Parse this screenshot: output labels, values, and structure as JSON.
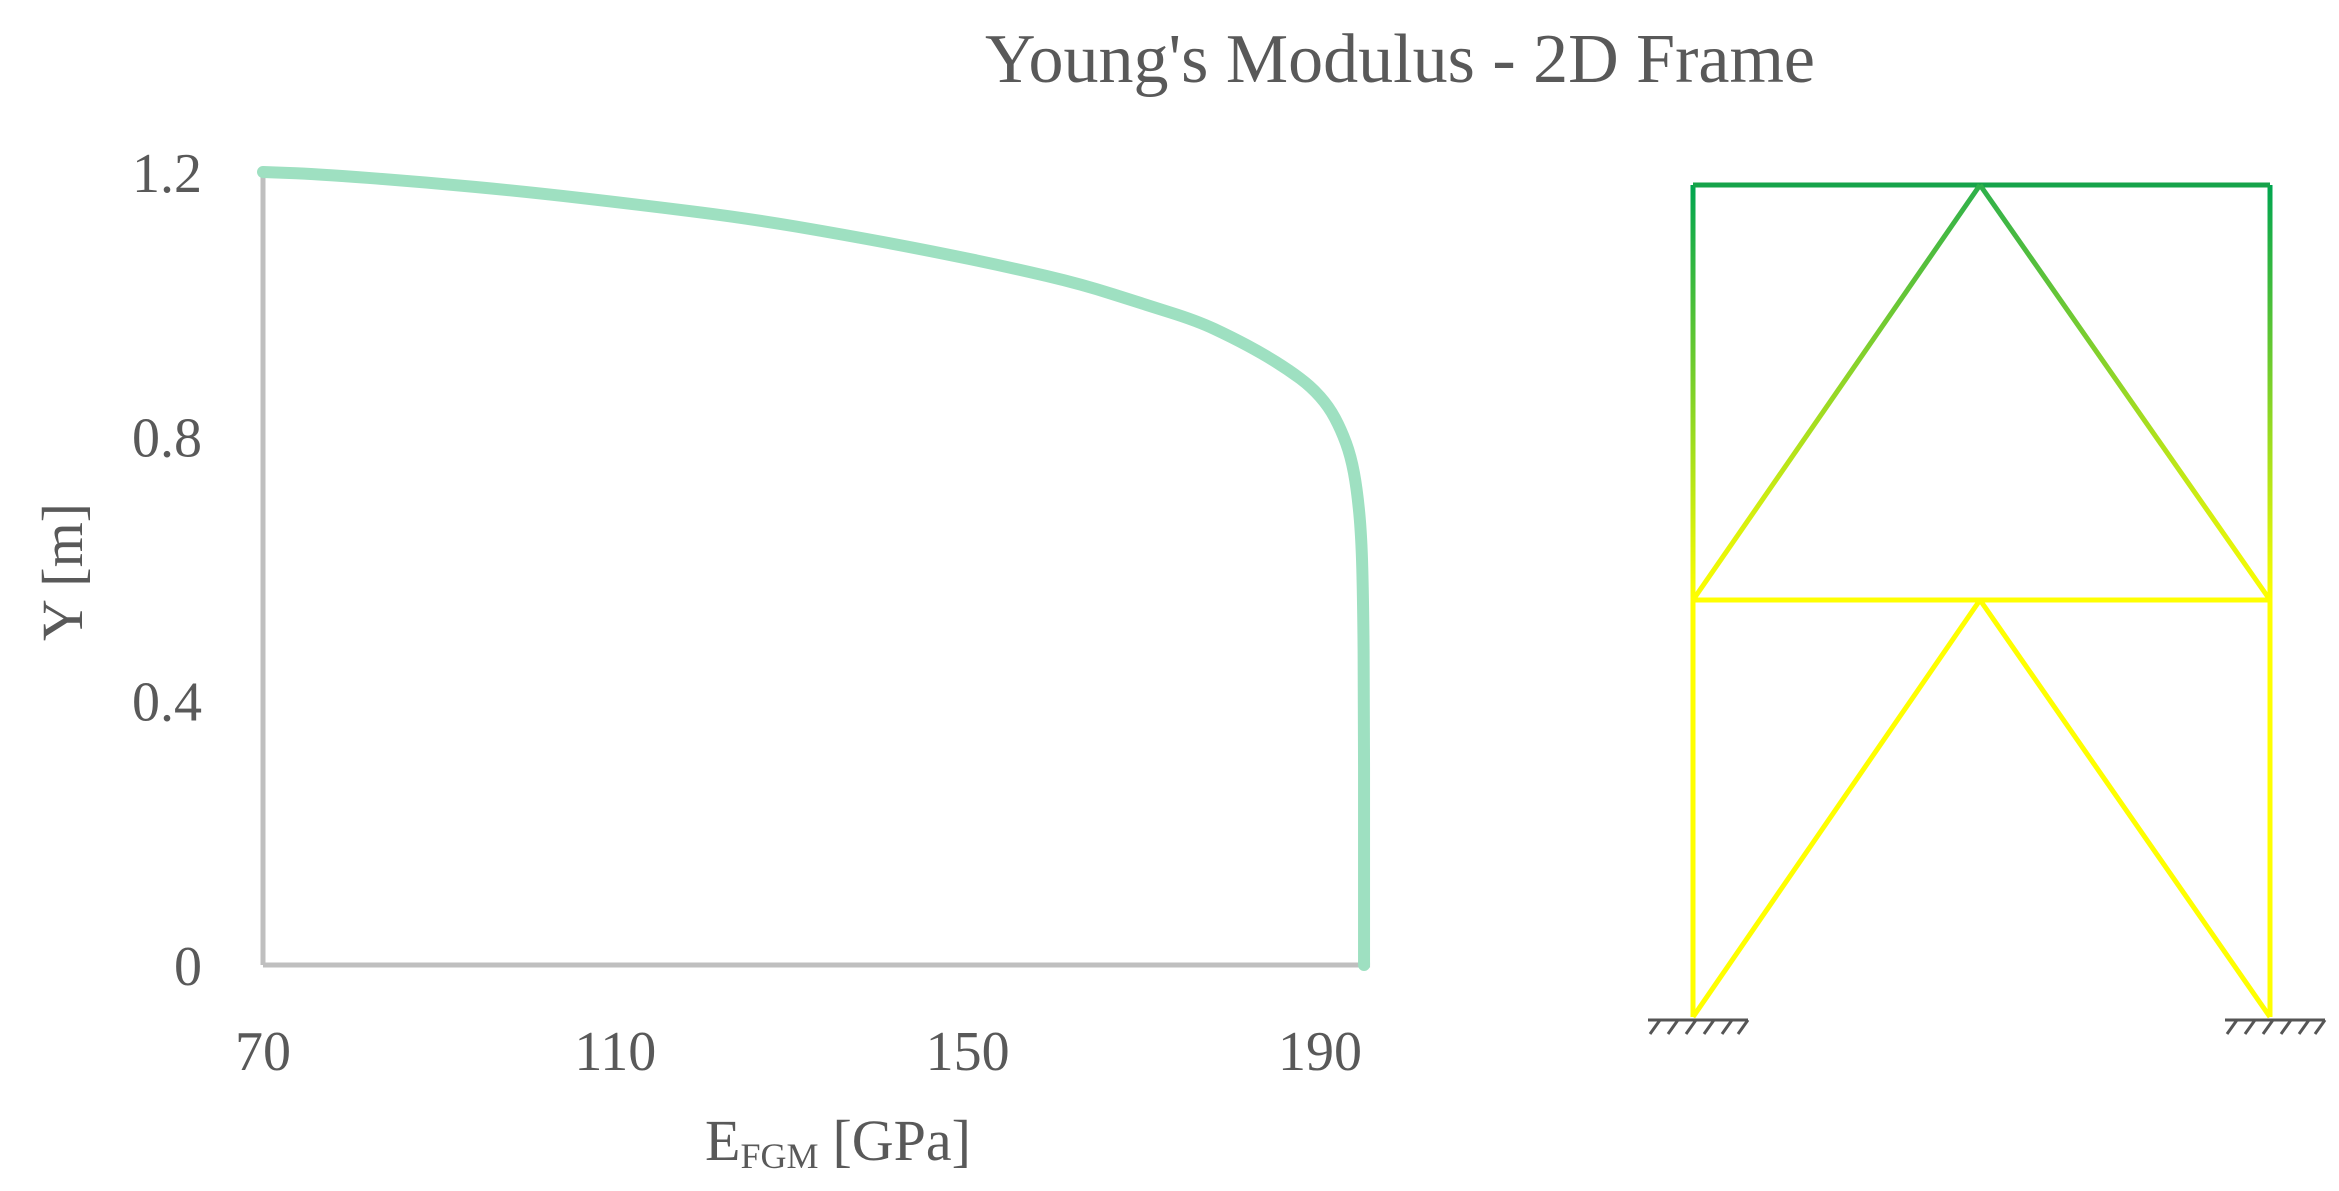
{
  "title": "Young's Modulus - 2D Frame",
  "chart_data": {
    "type": "line",
    "title": "Young's Modulus - 2D Frame",
    "xlabel": {
      "main": "E",
      "subscript": "FGM",
      "unit": "[GPa]"
    },
    "ylabel": "Y [m]",
    "xlim": [
      70,
      200
    ],
    "ylim": [
      0,
      1.2
    ],
    "xticks": [
      "70",
      "110",
      "150",
      "190"
    ],
    "xtick_values": [
      70,
      110,
      150,
      190
    ],
    "yticks": [
      "0",
      "0.4",
      "0.8",
      "1.2"
    ],
    "ytick_values": [
      0,
      0.4,
      0.8,
      1.2
    ],
    "grid": false,
    "series": [
      {
        "color": "#9ee0c1",
        "x": [
          195,
          195,
          195,
          194.9,
          194.7,
          194.2,
          193.5,
          192.4,
          191,
          189,
          186.5,
          183.5,
          180,
          176,
          170,
          163,
          155,
          146,
          136,
          125,
          113,
          100,
          88,
          76,
          70
        ],
        "y": [
          0,
          0.2,
          0.4,
          0.55,
          0.65,
          0.72,
          0.77,
          0.81,
          0.845,
          0.875,
          0.9,
          0.925,
          0.95,
          0.975,
          1.0,
          1.03,
          1.055,
          1.08,
          1.105,
          1.13,
          1.15,
          1.17,
          1.185,
          1.197,
          1.2
        ]
      }
    ]
  },
  "frame_diagram": {
    "colors": {
      "yellow": "#ffff00",
      "green": "#00a550"
    },
    "nodes": {
      "bl": {
        "label": "support-left"
      },
      "br": {
        "label": "support-right"
      }
    }
  }
}
